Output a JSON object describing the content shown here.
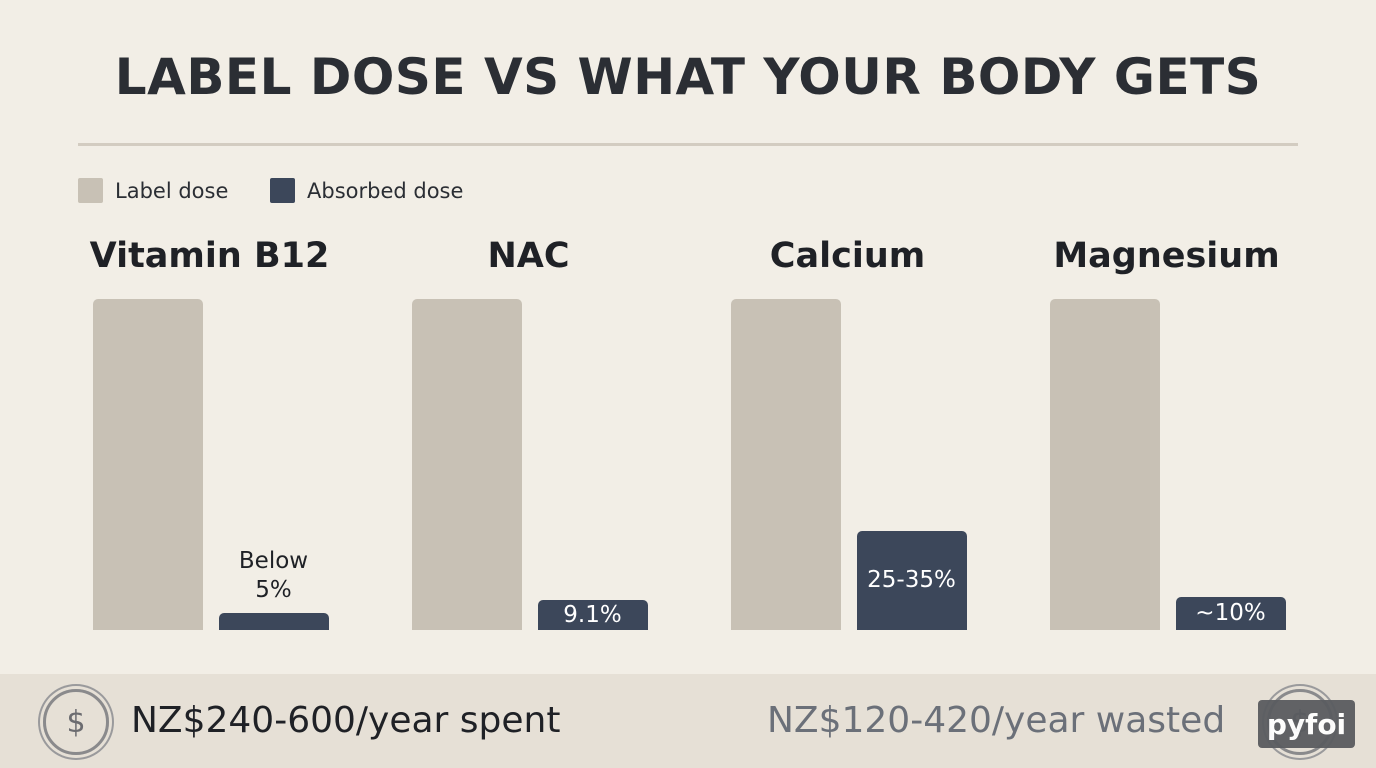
{
  "title": "LABEL DOSE VS WHAT YOUR BODY GETS",
  "chart_data": {
    "type": "bar",
    "categories": [
      "Vitamin B12",
      "NAC",
      "Calcium",
      "Magnesium"
    ],
    "series": [
      {
        "name": "Label dose",
        "color": "#c8c1b5",
        "values": [
          100,
          100,
          100,
          100
        ]
      },
      {
        "name": "Absorbed dose",
        "color": "#3c475a",
        "values": [
          5,
          9.1,
          30,
          10
        ],
        "value_labels": [
          "Below 5%",
          "9.1%",
          "25-35%",
          "~10%"
        ]
      }
    ]
  },
  "footer": {
    "icon": "$",
    "spent": "NZ$240-600/year spent",
    "wasted": "NZ$120-420/year wasted"
  },
  "watermark": "pyfoi"
}
